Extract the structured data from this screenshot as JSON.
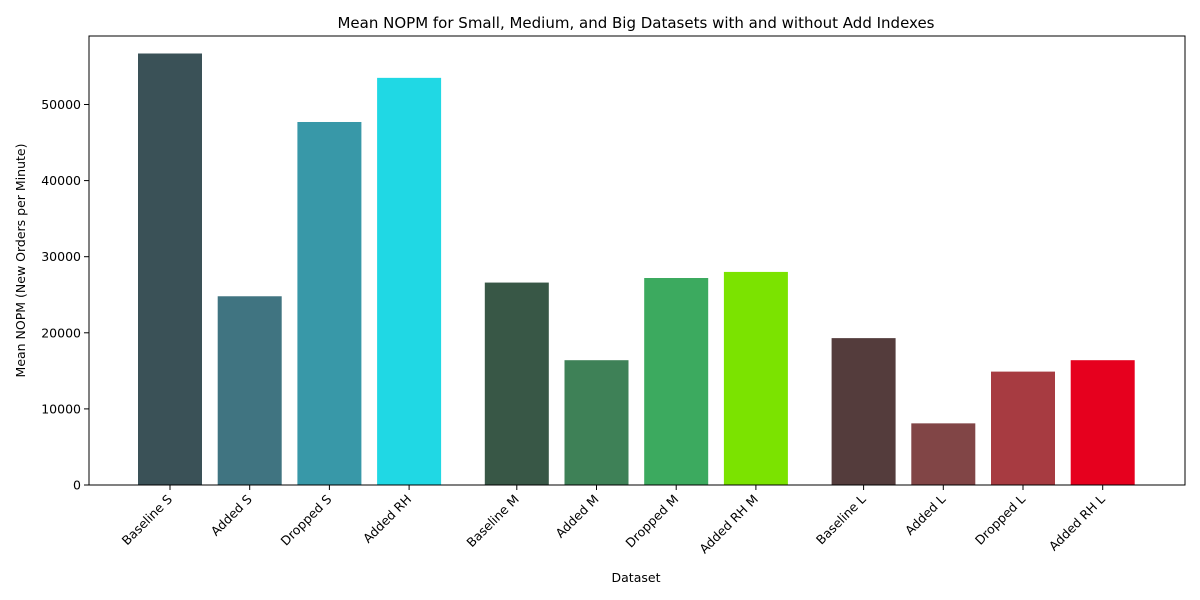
{
  "chart_data": {
    "type": "bar",
    "title": "Mean NOPM for Small, Medium, and Big Datasets with and without Add Indexes",
    "xlabel": "Dataset",
    "ylabel": "Mean NOPM (New Orders per Minute)",
    "ylim": [
      0,
      59000
    ],
    "yticks": [
      0,
      10000,
      20000,
      30000,
      40000,
      50000
    ],
    "grid": false,
    "categories": [
      "Baseline S",
      "Added S",
      "Dropped S",
      "Added RH",
      "Baseline M",
      "Added M",
      "Dropped M",
      "Added RH M",
      "Baseline L",
      "Added L",
      "Dropped L",
      "Added RH L"
    ],
    "groups": [
      0,
      0,
      0,
      0,
      1,
      1,
      1,
      1,
      2,
      2,
      2,
      2
    ],
    "values": [
      56700,
      24800,
      47700,
      53500,
      26600,
      16400,
      27200,
      28000,
      19300,
      8100,
      14900,
      16400
    ],
    "colors": [
      "#3a5157",
      "#407481",
      "#3898a8",
      "#20d8e4",
      "#385746",
      "#3e8157",
      "#3caa5f",
      "#7be300",
      "#543c3c",
      "#814546",
      "#a73b41",
      "#e6001e"
    ]
  }
}
